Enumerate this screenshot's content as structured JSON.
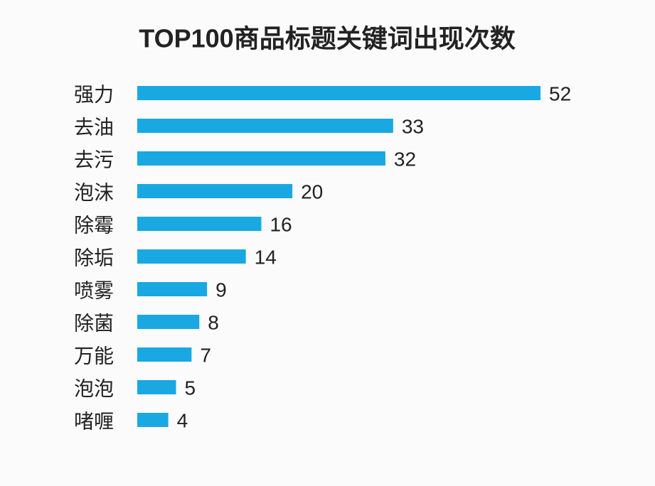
{
  "chart_data": {
    "type": "bar",
    "orientation": "horizontal",
    "title": "TOP100商品标题关键词出现次数",
    "categories": [
      "强力",
      "去油",
      "去污",
      "泡沫",
      "除霉",
      "除垢",
      "喷雾",
      "除菌",
      "万能",
      "泡泡",
      "啫喱"
    ],
    "values": [
      52,
      33,
      32,
      20,
      16,
      14,
      9,
      8,
      7,
      5,
      4
    ],
    "color": "#19a8e2"
  }
}
